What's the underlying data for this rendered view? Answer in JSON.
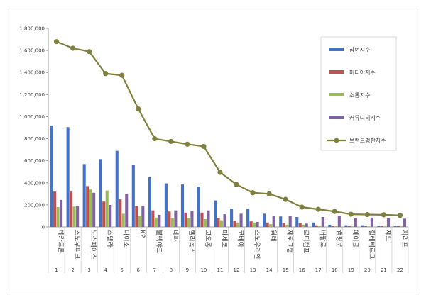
{
  "chart_data": {
    "type": "bar",
    "y_ticks": [
      "0",
      "200,000",
      "400,000",
      "600,000",
      "800,000",
      "1,000,000",
      "1,200,000",
      "1,400,000",
      "1,600,000",
      "1,800,000"
    ],
    "ylim": [
      0,
      1800000
    ],
    "categories": [
      "데카트론",
      "스노우피크",
      "노스페이스",
      "스텔라",
      "다이소",
      "K2",
      "블랙야크",
      "네파",
      "헬리녹스",
      "코오롱",
      "파세코",
      "코베아",
      "스노우라인",
      "웜레",
      "제로그램",
      "로티캠프",
      "버팔로",
      "캠핑문",
      "에이글",
      "힐레베르그",
      "제드",
      "지라프"
    ],
    "category_numbers": [
      "1",
      "2",
      "3",
      "4",
      "5",
      "6",
      "7",
      "8",
      "9",
      "10",
      "11",
      "12",
      "13",
      "14",
      "15",
      "16",
      "17",
      "18",
      "19",
      "20",
      "21",
      "22"
    ],
    "series": [
      {
        "name": "참여지수",
        "kind": "bar",
        "color": "#4472C4",
        "values": [
          920000,
          905000,
          570000,
          615000,
          690000,
          565000,
          450000,
          395000,
          385000,
          365000,
          240000,
          165000,
          165000,
          120000,
          95000,
          90000,
          40000,
          20000,
          15000,
          15000,
          10000,
          10000
        ]
      },
      {
        "name": "미디어지수",
        "kind": "bar",
        "color": "#C0504D",
        "values": [
          320000,
          320000,
          370000,
          230000,
          250000,
          190000,
          150000,
          140000,
          130000,
          130000,
          80000,
          55000,
          50000,
          40000,
          35000,
          35000,
          15000,
          10000,
          8000,
          8000,
          8000,
          8000
        ]
      },
      {
        "name": "소통지수",
        "kind": "bar",
        "color": "#9BBB59",
        "values": [
          180000,
          185000,
          340000,
          330000,
          120000,
          100000,
          85000,
          80000,
          80000,
          70000,
          60000,
          40000,
          40000,
          25000,
          20000,
          20000,
          10000,
          8000,
          5000,
          5000,
          5000,
          5000
        ]
      },
      {
        "name": "커뮤니티지수",
        "kind": "bar",
        "color": "#8064A2",
        "values": [
          245000,
          190000,
          310000,
          200000,
          300000,
          190000,
          110000,
          150000,
          145000,
          150000,
          115000,
          120000,
          45000,
          100000,
          100000,
          30000,
          90000,
          100000,
          80000,
          85000,
          80000,
          75000
        ]
      },
      {
        "name": "브랜드평판지수",
        "kind": "line",
        "color": "#7F7F3F",
        "values": [
          1680000,
          1620000,
          1590000,
          1390000,
          1375000,
          1070000,
          800000,
          775000,
          750000,
          730000,
          495000,
          385000,
          310000,
          300000,
          250000,
          180000,
          160000,
          140000,
          115000,
          112000,
          110000,
          105000
        ]
      }
    ],
    "legend_position": "top-right",
    "grid": false
  }
}
